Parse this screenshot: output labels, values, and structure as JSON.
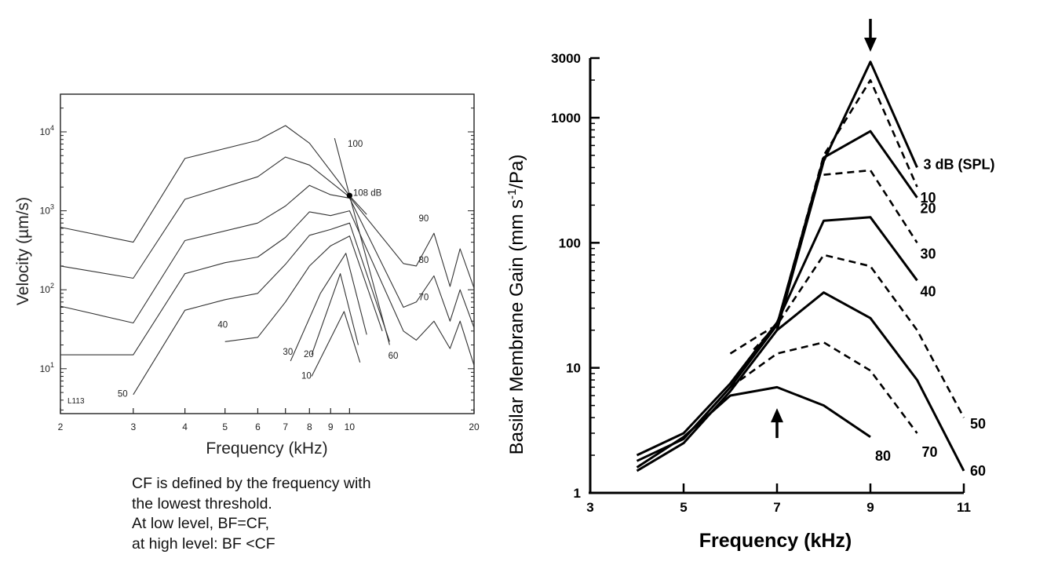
{
  "caption": {
    "lines": [
      "CF is defined by the frequency with",
      "the lowest threshold.",
      "At low level, BF=CF,",
      "at high level: BF <CF"
    ]
  },
  "chart_data": [
    {
      "type": "line",
      "title": "",
      "xlabel": "Frequency (kHz)",
      "ylabel": "Velocity (µm/s)",
      "x_scale": "log",
      "y_scale": "log",
      "xlim": [
        2,
        20
      ],
      "ylim": [
        2.7,
        30000
      ],
      "x_ticks": [
        2,
        3,
        4,
        5,
        6,
        7,
        8,
        9,
        10,
        20
      ],
      "x_tick_labels": [
        "2",
        "3",
        "4",
        "5",
        "6",
        "7",
        "8",
        "9",
        "10",
        "20"
      ],
      "y_ticks": [
        10,
        100,
        1000,
        10000
      ],
      "y_tick_labels": [
        "10",
        "10",
        "10",
        "10"
      ],
      "y_tick_exponents": [
        "1",
        "2",
        "3",
        "4"
      ],
      "grid": false,
      "corner_label": "L113",
      "series": [
        {
          "name": "100",
          "points": [
            [
              2,
              620
            ],
            [
              3,
              400
            ],
            [
              4,
              4600
            ],
            [
              6,
              7800
            ],
            [
              7,
              12000
            ],
            [
              8,
              7200
            ],
            [
              10,
              1550
            ],
            [
              11,
              900
            ]
          ]
        },
        {
          "name": "90",
          "points": [
            [
              2,
              200
            ],
            [
              3,
              140
            ],
            [
              4,
              1400
            ],
            [
              6,
              2700
            ],
            [
              7,
              4800
            ],
            [
              8,
              3800
            ],
            [
              10,
              1500
            ],
            [
              13.5,
              215
            ],
            [
              14.5,
              200
            ],
            [
              16,
              520
            ],
            [
              17.5,
              110
            ],
            [
              18.5,
              330
            ],
            [
              20,
              105
            ]
          ]
        },
        {
          "name": "80",
          "points": [
            [
              2,
              62
            ],
            [
              3,
              38
            ],
            [
              4,
              420
            ],
            [
              6,
              700
            ],
            [
              7,
              1150
            ],
            [
              8,
              2100
            ],
            [
              9,
              1600
            ],
            [
              10,
              1450
            ],
            [
              13.5,
              60
            ],
            [
              14.5,
              70
            ],
            [
              16,
              150
            ],
            [
              17.5,
              40
            ],
            [
              18.5,
              100
            ],
            [
              20,
              33
            ]
          ]
        },
        {
          "name": "70",
          "points": [
            [
              2,
              15
            ],
            [
              3,
              15
            ],
            [
              4,
              160
            ],
            [
              5,
              220
            ],
            [
              6,
              260
            ],
            [
              7,
              460
            ],
            [
              8,
              970
            ],
            [
              9,
              870
            ],
            [
              10,
              1000
            ],
            [
              13.5,
              30
            ],
            [
              14.5,
              23
            ],
            [
              16,
              40
            ],
            [
              17.5,
              18
            ],
            [
              18.5,
              40
            ],
            [
              20,
              11
            ]
          ]
        },
        {
          "name": "60",
          "points": [
            [
              3,
              4.7
            ],
            [
              4,
              55
            ],
            [
              5,
              75
            ],
            [
              6,
              90
            ],
            [
              7,
              210
            ],
            [
              8,
              490
            ],
            [
              9,
              580
            ],
            [
              10,
              700
            ],
            [
              12.5,
              22
            ]
          ]
        },
        {
          "name": "40",
          "points": [
            [
              5,
              22
            ],
            [
              6,
              25
            ],
            [
              7,
              70
            ],
            [
              8,
              200
            ],
            [
              9,
              360
            ],
            [
              10,
              480
            ],
            [
              12,
              30
            ]
          ]
        },
        {
          "name": "30",
          "points": [
            [
              7.2,
              12.5
            ],
            [
              8.5,
              90
            ],
            [
              9.8,
              290
            ],
            [
              11,
              27
            ]
          ]
        },
        {
          "name": "20",
          "points": [
            [
              8.1,
              15
            ],
            [
              9.5,
              160
            ],
            [
              10.5,
              20
            ]
          ]
        },
        {
          "name": "10",
          "points": [
            [
              8.1,
              8
            ],
            [
              9.7,
              53
            ],
            [
              10.6,
              12
            ]
          ]
        },
        {
          "name": "108 dB",
          "points": [
            [
              9.2,
              8300
            ],
            [
              10,
              1560
            ],
            [
              12.5,
              20
            ]
          ]
        }
      ],
      "annotations": [
        {
          "text": "100",
          "x": 9.9,
          "y": 6500
        },
        {
          "text": "108 dB",
          "x": 10.2,
          "y": 1550
        },
        {
          "text": "90",
          "x": 14.7,
          "y": 740
        },
        {
          "text": "80",
          "x": 14.7,
          "y": 218
        },
        {
          "text": "70",
          "x": 14.7,
          "y": 74
        },
        {
          "text": "60",
          "x": 12.4,
          "y": 13.4
        },
        {
          "text": "50",
          "x": 2.75,
          "y": 4.4
        },
        {
          "text": "40",
          "x": 4.8,
          "y": 33
        },
        {
          "text": "30",
          "x": 6.9,
          "y": 15
        },
        {
          "text": "20",
          "x": 7.75,
          "y": 14
        },
        {
          "text": "10",
          "x": 7.65,
          "y": 7.5
        }
      ],
      "marker": {
        "x": 10,
        "y": 1560
      }
    },
    {
      "type": "line",
      "title": "",
      "xlabel": "Frequency (kHz)",
      "ylabel": "Basilar Membrane Gain (mm s-1/Pa)",
      "ylabel_parts": [
        "Basilar Membrane Gain (mm s",
        "-1",
        "/Pa)"
      ],
      "x_scale": "linear",
      "y_scale": "log",
      "xlim": [
        3,
        11
      ],
      "ylim": [
        1,
        3000
      ],
      "x_ticks": [
        3,
        5,
        7,
        9,
        11
      ],
      "x_tick_labels": [
        "3",
        "5",
        "7",
        "9",
        "11"
      ],
      "y_ticks": [
        1,
        10,
        100,
        1000,
        3000
      ],
      "y_tick_labels": [
        "1",
        "10",
        "100",
        "1000",
        "3000"
      ],
      "grid": false,
      "series": [
        {
          "name": "3 dB (SPL)",
          "style": "solid",
          "label": "3 dB (SPL)",
          "points": [
            [
              7,
              20
            ],
            [
              8,
              450
            ],
            [
              9,
              2800
            ],
            [
              10,
              400
            ]
          ]
        },
        {
          "name": "10",
          "style": "dashed",
          "label": "10",
          "points": [
            [
              6.5,
              14
            ],
            [
              7,
              22
            ],
            [
              8,
              500
            ],
            [
              9,
              2000
            ],
            [
              10,
              280
            ]
          ]
        },
        {
          "name": "20",
          "style": "solid",
          "label": "20",
          "points": [
            [
              4,
              1.8
            ],
            [
              5,
              2.7
            ],
            [
              6,
              7
            ],
            [
              7,
              22
            ],
            [
              8,
              480
            ],
            [
              9,
              780
            ],
            [
              10,
              230
            ]
          ]
        },
        {
          "name": "30",
          "style": "dashed",
          "label": "30",
          "points": [
            [
              8,
              350
            ],
            [
              9,
              380
            ],
            [
              10,
              100
            ]
          ]
        },
        {
          "name": "40",
          "style": "solid",
          "label": "40",
          "points": [
            [
              4,
              2
            ],
            [
              5,
              3
            ],
            [
              6,
              7.5
            ],
            [
              7,
              23
            ],
            [
              8,
              150
            ],
            [
              9,
              160
            ],
            [
              10,
              50
            ]
          ]
        },
        {
          "name": "50",
          "style": "dashed",
          "label": "50",
          "points": [
            [
              6,
              13
            ],
            [
              6.6,
              18
            ],
            [
              7,
              22
            ],
            [
              8,
              80
            ],
            [
              9,
              65
            ],
            [
              10,
              20
            ],
            [
              11,
              4
            ]
          ]
        },
        {
          "name": "60",
          "style": "solid",
          "label": "60",
          "points": [
            [
              4,
              1.5
            ],
            [
              5,
              2.5
            ],
            [
              6,
              6.5
            ],
            [
              7,
              20
            ],
            [
              8,
              40
            ],
            [
              9,
              25
            ],
            [
              10,
              8
            ],
            [
              11,
              1.5
            ]
          ]
        },
        {
          "name": "70",
          "style": "dashed",
          "label": "70",
          "points": [
            [
              6,
              7
            ],
            [
              7,
              13
            ],
            [
              8,
              16
            ],
            [
              9,
              9.5
            ],
            [
              10,
              3
            ]
          ]
        },
        {
          "name": "80",
          "style": "solid",
          "label": "80",
          "points": [
            [
              4,
              1.6
            ],
            [
              5,
              2.8
            ],
            [
              6,
              6
            ],
            [
              7,
              7
            ],
            [
              8,
              5
            ],
            [
              9,
              2.8
            ]
          ]
        }
      ],
      "arrows": [
        {
          "direction": "down",
          "x": 9,
          "y": 5500
        },
        {
          "direction": "up",
          "x": 7,
          "y": 4
        }
      ]
    }
  ]
}
